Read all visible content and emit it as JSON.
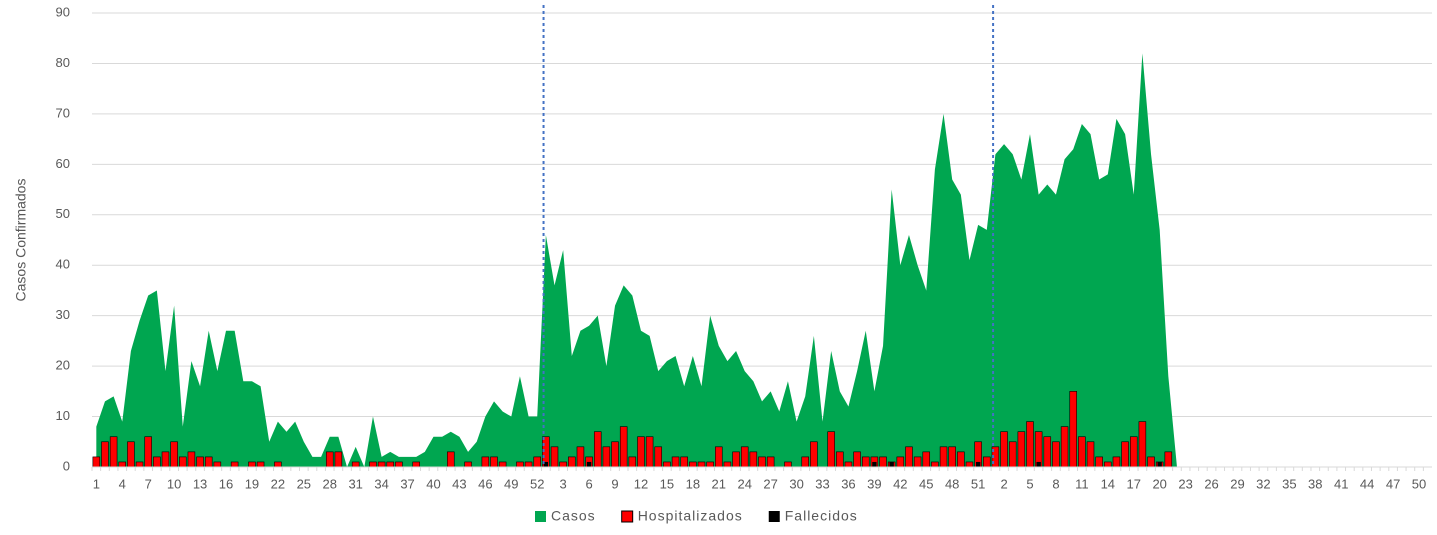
{
  "chart_data": {
    "type": "combo",
    "y_label": "Casos Confirmados",
    "categories": [
      "1",
      null,
      null,
      "4",
      null,
      null,
      "7",
      null,
      null,
      "10",
      null,
      null,
      "13",
      null,
      null,
      "16",
      null,
      null,
      "19",
      null,
      null,
      "22",
      null,
      null,
      "25",
      null,
      null,
      "28",
      null,
      null,
      "31",
      null,
      null,
      "34",
      null,
      null,
      "37",
      null,
      null,
      "40",
      null,
      null,
      "43",
      null,
      null,
      "46",
      null,
      null,
      "49",
      null,
      null,
      "52",
      null,
      null,
      "3",
      null,
      null,
      "6",
      null,
      null,
      "9",
      null,
      null,
      "12",
      null,
      null,
      "15",
      null,
      null,
      "18",
      null,
      null,
      "21",
      null,
      null,
      "24",
      null,
      null,
      "27",
      null,
      null,
      "30",
      null,
      null,
      "33",
      null,
      null,
      "36",
      null,
      null,
      "39",
      null,
      null,
      "42",
      null,
      null,
      "45",
      null,
      null,
      "48",
      null,
      null,
      "51",
      null,
      null,
      "2",
      null,
      null,
      "5",
      null,
      null,
      "8",
      null,
      null,
      "11",
      null,
      null,
      "14",
      null,
      null,
      "17",
      null,
      null,
      "20",
      null,
      null,
      "23",
      null,
      null,
      "26",
      null,
      null,
      "29",
      null,
      null,
      "32",
      null,
      null,
      "35",
      null,
      null,
      "38",
      null,
      null,
      "41",
      null,
      null,
      "44",
      null,
      null,
      "47",
      null,
      null,
      "50",
      null
    ],
    "series": [
      {
        "name": "Casos",
        "kind": "area",
        "color": "#00a650",
        "values": [
          8,
          13,
          14,
          9,
          23,
          29,
          34,
          35,
          19,
          32,
          8,
          21,
          16,
          27,
          19,
          27,
          27,
          17,
          17,
          16,
          5,
          9,
          7,
          9,
          5,
          2,
          2,
          6,
          6,
          0,
          4,
          0,
          10,
          2,
          3,
          2,
          2,
          2,
          3,
          6,
          6,
          7,
          6,
          3,
          5,
          10,
          13,
          11,
          10,
          18,
          10,
          10,
          46,
          36,
          43,
          22,
          27,
          28,
          30,
          20,
          32,
          36,
          34,
          27,
          26,
          19,
          21,
          22,
          16,
          22,
          16,
          30,
          24,
          21,
          23,
          19,
          17,
          13,
          15,
          11,
          17,
          9,
          14,
          26,
          9,
          23,
          15,
          12,
          19,
          27,
          15,
          24,
          55,
          40,
          46,
          40,
          35,
          59,
          70,
          57,
          54,
          41,
          48,
          47,
          62,
          64,
          62,
          57,
          66,
          54,
          56,
          54,
          61,
          63,
          68,
          66,
          57,
          58,
          69,
          66,
          54,
          82,
          62,
          47,
          18,
          0,
          null,
          null,
          null,
          null,
          null,
          null,
          null,
          null,
          null,
          null,
          null,
          null,
          null,
          null,
          null,
          null,
          null,
          null,
          null,
          null,
          null,
          null,
          null,
          null,
          null,
          null,
          null,
          null,
          null
        ]
      },
      {
        "name": "Hospitalizados",
        "kind": "bar",
        "color": "#ff0000",
        "values": [
          2,
          5,
          6,
          1,
          5,
          1,
          6,
          2,
          3,
          5,
          2,
          3,
          2,
          2,
          1,
          0,
          1,
          0,
          1,
          1,
          0,
          1,
          0,
          0,
          0,
          0,
          0,
          3,
          3,
          0,
          1,
          0,
          1,
          1,
          1,
          1,
          0,
          1,
          0,
          0,
          0,
          3,
          0,
          1,
          0,
          2,
          2,
          1,
          0,
          1,
          1,
          2,
          6,
          4,
          1,
          2,
          4,
          2,
          7,
          4,
          5,
          8,
          2,
          6,
          6,
          4,
          1,
          2,
          2,
          1,
          1,
          1,
          4,
          1,
          3,
          4,
          3,
          2,
          2,
          0,
          1,
          0,
          2,
          5,
          0,
          7,
          3,
          1,
          3,
          2,
          2,
          2,
          1,
          2,
          4,
          2,
          3,
          1,
          4,
          4,
          3,
          1,
          5,
          2,
          4,
          7,
          5,
          7,
          9,
          7,
          6,
          5,
          8,
          15,
          6,
          5,
          2,
          1,
          2,
          5,
          6,
          9,
          2,
          1,
          3,
          null,
          null,
          null,
          null,
          null,
          null,
          null,
          null,
          null,
          null,
          null,
          null,
          null,
          null,
          null,
          null,
          null,
          null,
          null,
          null,
          null,
          null,
          null,
          null,
          null,
          null,
          null,
          null,
          null,
          null
        ]
      },
      {
        "name": "Fallecidos",
        "kind": "bar",
        "color": "#000000",
        "values": [
          0,
          0,
          0,
          0,
          0,
          0,
          0,
          0,
          0,
          0,
          0,
          0,
          0,
          0,
          0,
          0,
          0,
          0,
          0,
          0,
          0,
          0,
          0,
          0,
          0,
          0,
          0,
          0,
          0,
          0,
          0,
          0,
          0,
          0,
          0,
          0,
          0,
          0,
          0,
          0,
          0,
          0,
          0,
          0,
          0,
          0,
          0,
          0,
          0,
          0,
          0,
          0,
          1,
          0,
          0,
          0,
          0,
          1,
          0,
          0,
          0,
          0,
          0,
          0,
          0,
          0,
          0,
          0,
          0,
          0,
          0,
          0,
          0,
          0,
          0,
          0,
          0,
          0,
          0,
          0,
          0,
          0,
          0,
          0,
          0,
          0,
          0,
          0,
          0,
          0,
          1,
          0,
          1,
          0,
          0,
          0,
          0,
          0,
          0,
          0,
          0,
          0,
          1,
          0,
          0,
          0,
          0,
          0,
          0,
          1,
          0,
          0,
          0,
          0,
          0,
          0,
          0,
          0,
          0,
          0,
          0,
          0,
          0,
          1,
          0,
          null,
          null,
          null,
          null,
          null,
          null,
          null,
          null,
          null,
          null,
          null,
          null,
          null,
          null,
          null,
          null,
          null,
          null,
          null,
          null,
          null,
          null,
          null,
          null,
          null,
          null,
          null,
          null,
          null,
          null
        ]
      }
    ],
    "ylim": [
      0,
      90
    ],
    "yticks": [
      0,
      10,
      20,
      30,
      40,
      50,
      60,
      70,
      80,
      90
    ],
    "grid": true,
    "legend": "bottom"
  }
}
